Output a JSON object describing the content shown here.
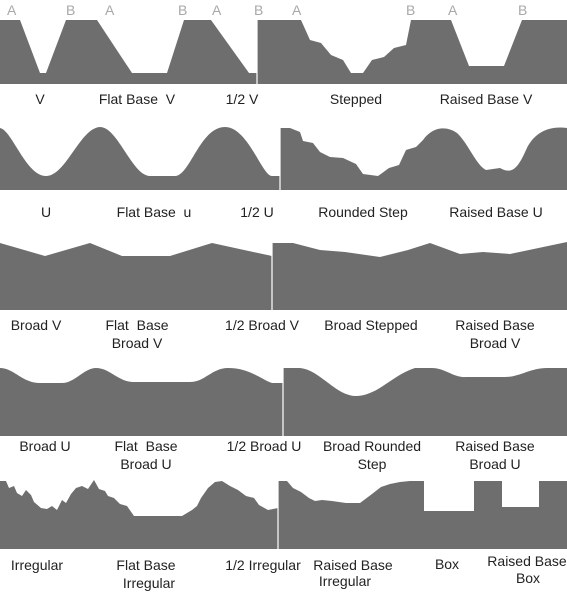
{
  "colors": {
    "profile": "#6e6e6e",
    "marker": "#a8a8a8",
    "caption": "#222222",
    "background": "#ffffff"
  },
  "markers": [
    "A",
    "B",
    "A",
    "B",
    "A",
    "B",
    "A",
    "B",
    "A",
    "B"
  ],
  "rows": [
    {
      "id": "v-row",
      "captions": [
        [
          "V"
        ],
        [
          "Flat Base  V"
        ],
        [
          "1/2 V"
        ],
        [
          "Stepped"
        ],
        [
          "Raised Base V"
        ]
      ]
    },
    {
      "id": "u-row",
      "captions": [
        [
          "U"
        ],
        [
          "Flat Base  u"
        ],
        [
          "1/2 U"
        ],
        [
          "Rounded Step"
        ],
        [
          "Raised Base U"
        ]
      ]
    },
    {
      "id": "broad-v-row",
      "captions": [
        [
          "Broad V"
        ],
        [
          "Flat  Base",
          "Broad V"
        ],
        [
          "1/2 Broad V"
        ],
        [
          "Broad Stepped"
        ],
        [
          "Raised Base",
          "Broad V"
        ]
      ]
    },
    {
      "id": "broad-u-row",
      "captions": [
        [
          "Broad U"
        ],
        [
          "Flat  Base",
          "Broad U"
        ],
        [
          "1/2 Broad U"
        ],
        [
          "Broad Rounded",
          "Step"
        ],
        [
          "Raised Base",
          "Broad U"
        ]
      ]
    },
    {
      "id": "irregular-row",
      "captions": [
        [
          "Irregular"
        ],
        [
          "Flat Base",
          "Irregular"
        ],
        [
          "1/2 Irregular"
        ],
        [
          "Raised Base",
          "Irregular"
        ],
        [
          "Box"
        ],
        [
          "Raised Base",
          "Box"
        ]
      ]
    }
  ]
}
